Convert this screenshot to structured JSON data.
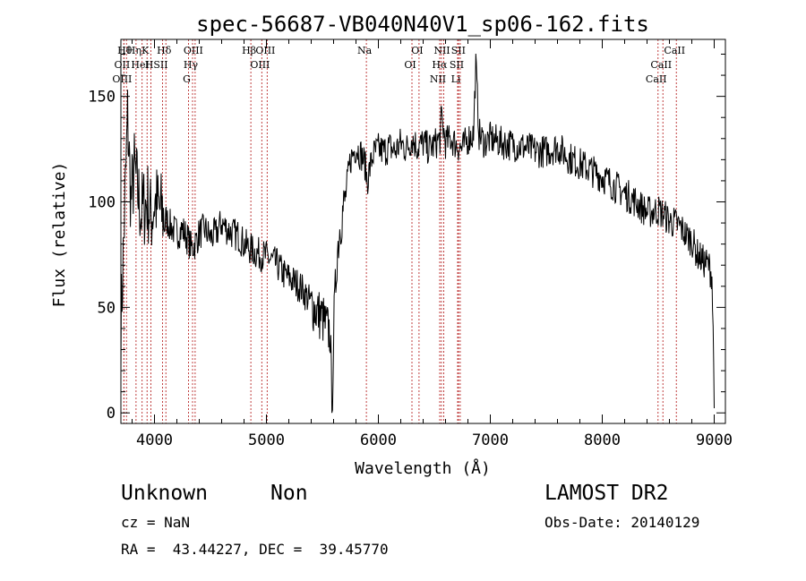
{
  "chart_data": {
    "type": "line",
    "title": "spec-56687-VB040N40V1_sp06-162.fits",
    "xlabel": "Wavelength (Å)",
    "ylabel": "Flux (relative)",
    "xlim": [
      3700,
      9100
    ],
    "ylim": [
      -5,
      177
    ],
    "x_ticks": [
      4000,
      5000,
      6000,
      7000,
      8000,
      9000
    ],
    "y_ticks": [
      0,
      50,
      100,
      150
    ],
    "grid": false,
    "series": [
      {
        "color": "#000000",
        "x": [
          3700,
          3730,
          3760,
          3790,
          3820,
          3850,
          3880,
          3910,
          3940,
          3970,
          4000,
          4050,
          4100,
          4150,
          4200,
          4250,
          4300,
          4330,
          4360,
          4400,
          4450,
          4500,
          4550,
          4600,
          4650,
          4700,
          4750,
          4800,
          4850,
          4900,
          4950,
          5000,
          5050,
          5100,
          5150,
          5200,
          5250,
          5300,
          5350,
          5400,
          5450,
          5500,
          5540,
          5570,
          5585,
          5600,
          5630,
          5660,
          5700,
          5750,
          5800,
          5850,
          5880,
          5900,
          5950,
          6000,
          6050,
          6100,
          6150,
          6200,
          6250,
          6300,
          6350,
          6400,
          6450,
          6500,
          6550,
          6563,
          6600,
          6650,
          6700,
          6750,
          6800,
          6850,
          6870,
          6900,
          6950,
          7000,
          7100,
          7200,
          7300,
          7400,
          7500,
          7600,
          7700,
          7800,
          7900,
          8000,
          8100,
          8200,
          8300,
          8400,
          8500,
          8550,
          8600,
          8650,
          8700,
          8750,
          8800,
          8850,
          8900,
          8950,
          8980,
          9000
        ],
        "y": [
          40,
          90,
          140,
          100,
          115,
          105,
          95,
          98,
          100,
          92,
          100,
          96,
          92,
          88,
          85,
          87,
          82,
          78,
          80,
          85,
          87,
          83,
          85,
          90,
          87,
          85,
          84,
          80,
          78,
          76,
          75,
          74,
          72,
          70,
          66,
          64,
          62,
          60,
          56,
          52,
          48,
          45,
          40,
          38,
          0,
          38,
          75,
          90,
          100,
          120,
          126,
          122,
          118,
          110,
          122,
          125,
          124,
          126,
          124,
          128,
          125,
          130,
          126,
          128,
          125,
          127,
          130,
          140,
          128,
          130,
          127,
          125,
          130,
          132,
          165,
          132,
          128,
          130,
          128,
          127,
          126,
          124,
          124,
          126,
          121,
          118,
          115,
          112,
          108,
          104,
          100,
          95,
          96,
          94,
          91,
          90,
          88,
          84,
          82,
          75,
          72,
          70,
          65,
          10
        ],
        "fluctuation": 8
      }
    ],
    "annotations": [
      {
        "labels": [
          "Hθ",
          "OII",
          "OIII"
        ],
        "x": [
          3750,
          3727,
          3727
        ]
      },
      {
        "labels": [
          "K",
          "HeI"
        ],
        "x": [
          3934,
          3889
        ]
      },
      {
        "labels": [
          "Hη",
          "H"
        ],
        "x": [
          3835,
          3968
        ]
      },
      {
        "labels": [
          "Hδ",
          "SII"
        ],
        "x": [
          4102,
          4072
        ]
      },
      {
        "labels": [
          "OIII",
          "Hγ",
          "G"
        ],
        "x": [
          4363,
          4340,
          4304
        ]
      },
      {
        "labels": [
          "Hβ"
        ],
        "x": [
          4861
        ]
      },
      {
        "labels": [
          "OIII",
          "OIII"
        ],
        "x": [
          5007,
          4959
        ]
      },
      {
        "labels": [
          "Na"
        ],
        "x": [
          5893
        ]
      },
      {
        "labels": [
          "OI",
          "OI"
        ],
        "x": [
          6363,
          6300
        ]
      },
      {
        "labels": [
          "NII",
          "Hα",
          "NII"
        ],
        "x": [
          6584,
          6563,
          6548
        ]
      },
      {
        "labels": [
          "SII",
          "SII",
          "Li"
        ],
        "x": [
          6731,
          6716,
          6708
        ]
      },
      {
        "labels": [
          "CaII",
          "CaII",
          "CaII"
        ],
        "x": [
          8662,
          8542,
          8498
        ]
      }
    ]
  },
  "info": {
    "object_class": "Unknown",
    "object_subclass": "Non",
    "survey": "LAMOST DR2",
    "redshift": "cz = NaN",
    "obs_date": "Obs-Date: 20140129",
    "coords": "RA =  43.44227, DEC =  39.45770"
  }
}
